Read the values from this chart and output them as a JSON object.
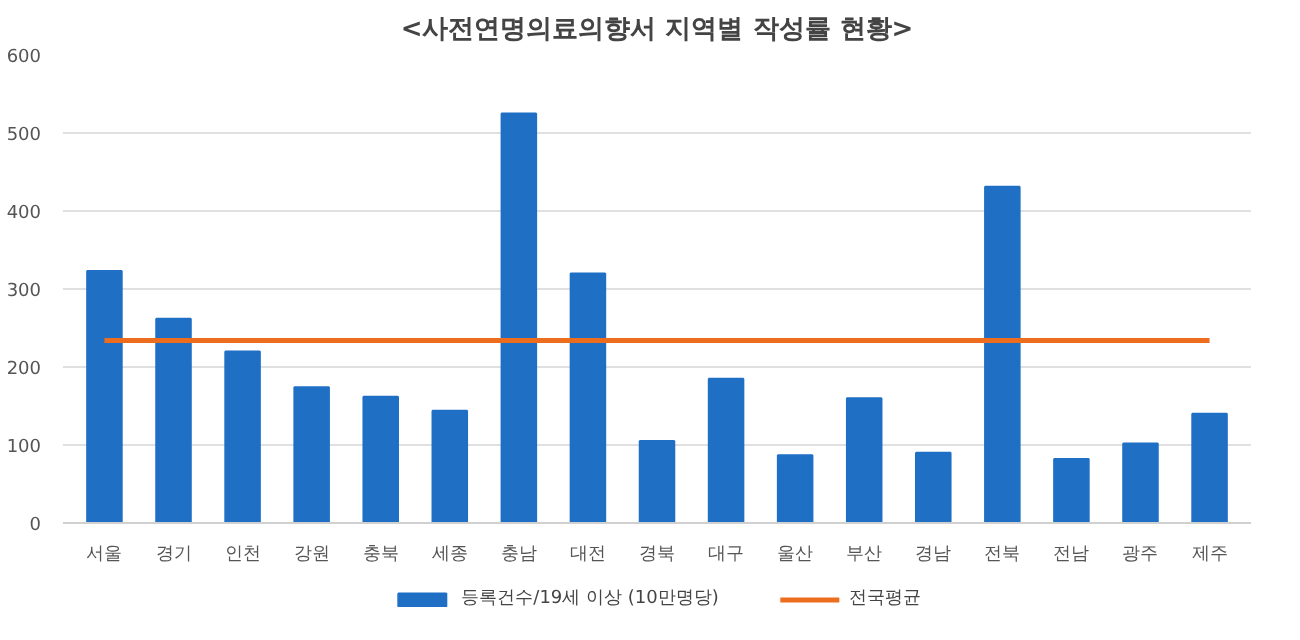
{
  "chart_data": {
    "type": "bar",
    "title": "<사전연명의료의향서 지역별 작성률 현황>",
    "categories": [
      "서울",
      "경기",
      "인천",
      "강원",
      "충북",
      "세종",
      "충남",
      "대전",
      "경북",
      "대구",
      "울산",
      "부산",
      "경남",
      "전북",
      "전남",
      "광주",
      "제주"
    ],
    "series": [
      {
        "name": "등록건수/19세 이상 (10만명당)",
        "color": "#1f6fc5",
        "values": [
          323,
          262,
          220,
          174,
          162,
          144,
          525,
          320,
          105,
          185,
          87,
          160,
          90,
          431,
          82,
          102,
          140
        ]
      },
      {
        "name": "전국평균",
        "type": "line",
        "color": "#ed6d1f",
        "values": [
          234,
          234,
          234,
          234,
          234,
          234,
          234,
          234,
          234,
          234,
          234,
          234,
          234,
          234,
          234,
          234,
          234
        ]
      }
    ],
    "ylim": [
      0,
      600
    ],
    "yticks": [
      0,
      100,
      200,
      300,
      400,
      500,
      600
    ],
    "grid": "y",
    "legend": "bottom"
  }
}
